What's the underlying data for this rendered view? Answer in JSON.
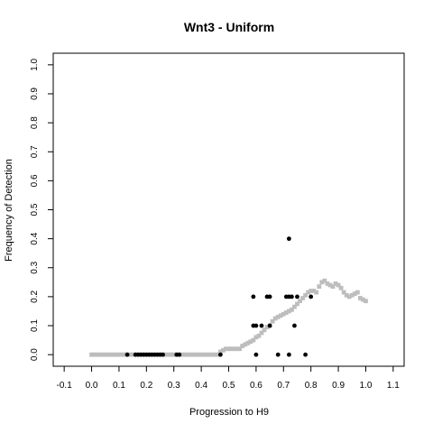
{
  "chart_data": {
    "type": "scatter",
    "title": "Wnt3 - Uniform",
    "xlabel": "Progression to H9",
    "ylabel": "Frequency of Detection",
    "xlim": [
      -0.14,
      1.14
    ],
    "ylim": [
      -0.04,
      1.04
    ],
    "x_ticks": [
      -0.1,
      0.0,
      0.1,
      0.2,
      0.3,
      0.4,
      0.5,
      0.6,
      0.7,
      0.8,
      0.9,
      1.0,
      1.1
    ],
    "x_tick_labels": [
      "-0.1",
      "0.0",
      "0.1",
      "0.2",
      "0.3",
      "0.4",
      "0.5",
      "0.6",
      "0.7",
      "0.8",
      "0.9",
      "1.0",
      "1.1"
    ],
    "y_ticks": [
      0.0,
      0.1,
      0.2,
      0.3,
      0.4,
      0.5,
      0.6,
      0.7,
      0.8,
      0.9,
      1.0
    ],
    "y_tick_labels": [
      "0.0",
      "0.1",
      "0.2",
      "0.3",
      "0.4",
      "0.5",
      "0.6",
      "0.7",
      "0.8",
      "0.9",
      "1.0"
    ],
    "grid": false,
    "series": [
      {
        "color": "#bdbdbd",
        "marker": "square",
        "points": [
          [
            0.0,
            0.0
          ],
          [
            0.01,
            0.0
          ],
          [
            0.02,
            0.0
          ],
          [
            0.03,
            0.0
          ],
          [
            0.04,
            0.0
          ],
          [
            0.05,
            0.0
          ],
          [
            0.06,
            0.0
          ],
          [
            0.07,
            0.0
          ],
          [
            0.08,
            0.0
          ],
          [
            0.09,
            0.0
          ],
          [
            0.1,
            0.0
          ],
          [
            0.11,
            0.0
          ],
          [
            0.12,
            0.0
          ],
          [
            0.13,
            0.0
          ],
          [
            0.14,
            0.0
          ],
          [
            0.15,
            0.0
          ],
          [
            0.16,
            0.0
          ],
          [
            0.17,
            0.0
          ],
          [
            0.18,
            0.0
          ],
          [
            0.19,
            0.0
          ],
          [
            0.2,
            0.0
          ],
          [
            0.21,
            0.0
          ],
          [
            0.22,
            0.0
          ],
          [
            0.23,
            0.0
          ],
          [
            0.24,
            0.0
          ],
          [
            0.25,
            0.0
          ],
          [
            0.26,
            0.0
          ],
          [
            0.27,
            0.0
          ],
          [
            0.28,
            0.0
          ],
          [
            0.29,
            0.0
          ],
          [
            0.3,
            0.0
          ],
          [
            0.31,
            0.0
          ],
          [
            0.32,
            0.0
          ],
          [
            0.33,
            0.0
          ],
          [
            0.34,
            0.0
          ],
          [
            0.35,
            0.0
          ],
          [
            0.36,
            0.0
          ],
          [
            0.37,
            0.0
          ],
          [
            0.38,
            0.0
          ],
          [
            0.39,
            0.0
          ],
          [
            0.4,
            0.0
          ],
          [
            0.41,
            0.0
          ],
          [
            0.42,
            0.0
          ],
          [
            0.43,
            0.0
          ],
          [
            0.44,
            0.0
          ],
          [
            0.45,
            0.0
          ],
          [
            0.46,
            0.0
          ],
          [
            0.47,
            0.01
          ],
          [
            0.48,
            0.015
          ],
          [
            0.49,
            0.02
          ],
          [
            0.5,
            0.02
          ],
          [
            0.51,
            0.02
          ],
          [
            0.52,
            0.02
          ],
          [
            0.53,
            0.02
          ],
          [
            0.54,
            0.02
          ],
          [
            0.55,
            0.03
          ],
          [
            0.56,
            0.035
          ],
          [
            0.57,
            0.04
          ],
          [
            0.58,
            0.045
          ],
          [
            0.59,
            0.05
          ],
          [
            0.6,
            0.06
          ],
          [
            0.61,
            0.065
          ],
          [
            0.62,
            0.075
          ],
          [
            0.63,
            0.085
          ],
          [
            0.64,
            0.095
          ],
          [
            0.65,
            0.1
          ],
          [
            0.66,
            0.115
          ],
          [
            0.67,
            0.125
          ],
          [
            0.68,
            0.13
          ],
          [
            0.69,
            0.135
          ],
          [
            0.7,
            0.14
          ],
          [
            0.71,
            0.145
          ],
          [
            0.72,
            0.15
          ],
          [
            0.73,
            0.155
          ],
          [
            0.74,
            0.165
          ],
          [
            0.75,
            0.175
          ],
          [
            0.76,
            0.185
          ],
          [
            0.77,
            0.195
          ],
          [
            0.78,
            0.205
          ],
          [
            0.79,
            0.215
          ],
          [
            0.8,
            0.22
          ],
          [
            0.81,
            0.22
          ],
          [
            0.82,
            0.215
          ],
          [
            0.83,
            0.235
          ],
          [
            0.84,
            0.25
          ],
          [
            0.85,
            0.255
          ],
          [
            0.86,
            0.245
          ],
          [
            0.87,
            0.24
          ],
          [
            0.88,
            0.235
          ],
          [
            0.89,
            0.245
          ],
          [
            0.9,
            0.24
          ],
          [
            0.91,
            0.23
          ],
          [
            0.92,
            0.215
          ],
          [
            0.93,
            0.205
          ],
          [
            0.94,
            0.2
          ],
          [
            0.95,
            0.205
          ],
          [
            0.96,
            0.21
          ],
          [
            0.97,
            0.215
          ],
          [
            0.98,
            0.195
          ],
          [
            0.99,
            0.19
          ],
          [
            1.0,
            0.185
          ]
        ]
      },
      {
        "color": "#000000",
        "marker": "circle",
        "points": [
          [
            0.13,
            0.0
          ],
          [
            0.16,
            0.0
          ],
          [
            0.17,
            0.0
          ],
          [
            0.18,
            0.0
          ],
          [
            0.19,
            0.0
          ],
          [
            0.2,
            0.0
          ],
          [
            0.21,
            0.0
          ],
          [
            0.22,
            0.0
          ],
          [
            0.23,
            0.0
          ],
          [
            0.24,
            0.0
          ],
          [
            0.25,
            0.0
          ],
          [
            0.26,
            0.0
          ],
          [
            0.31,
            0.0
          ],
          [
            0.32,
            0.0
          ],
          [
            0.47,
            0.0
          ],
          [
            0.6,
            0.0
          ],
          [
            0.68,
            0.0
          ],
          [
            0.72,
            0.0
          ],
          [
            0.78,
            0.0
          ],
          [
            0.59,
            0.1
          ],
          [
            0.6,
            0.1
          ],
          [
            0.62,
            0.1
          ],
          [
            0.65,
            0.1
          ],
          [
            0.74,
            0.1
          ],
          [
            0.59,
            0.2
          ],
          [
            0.64,
            0.2
          ],
          [
            0.65,
            0.2
          ],
          [
            0.71,
            0.2
          ],
          [
            0.72,
            0.2
          ],
          [
            0.73,
            0.2
          ],
          [
            0.75,
            0.2
          ],
          [
            0.8,
            0.2
          ],
          [
            0.72,
            0.4
          ]
        ]
      }
    ]
  }
}
